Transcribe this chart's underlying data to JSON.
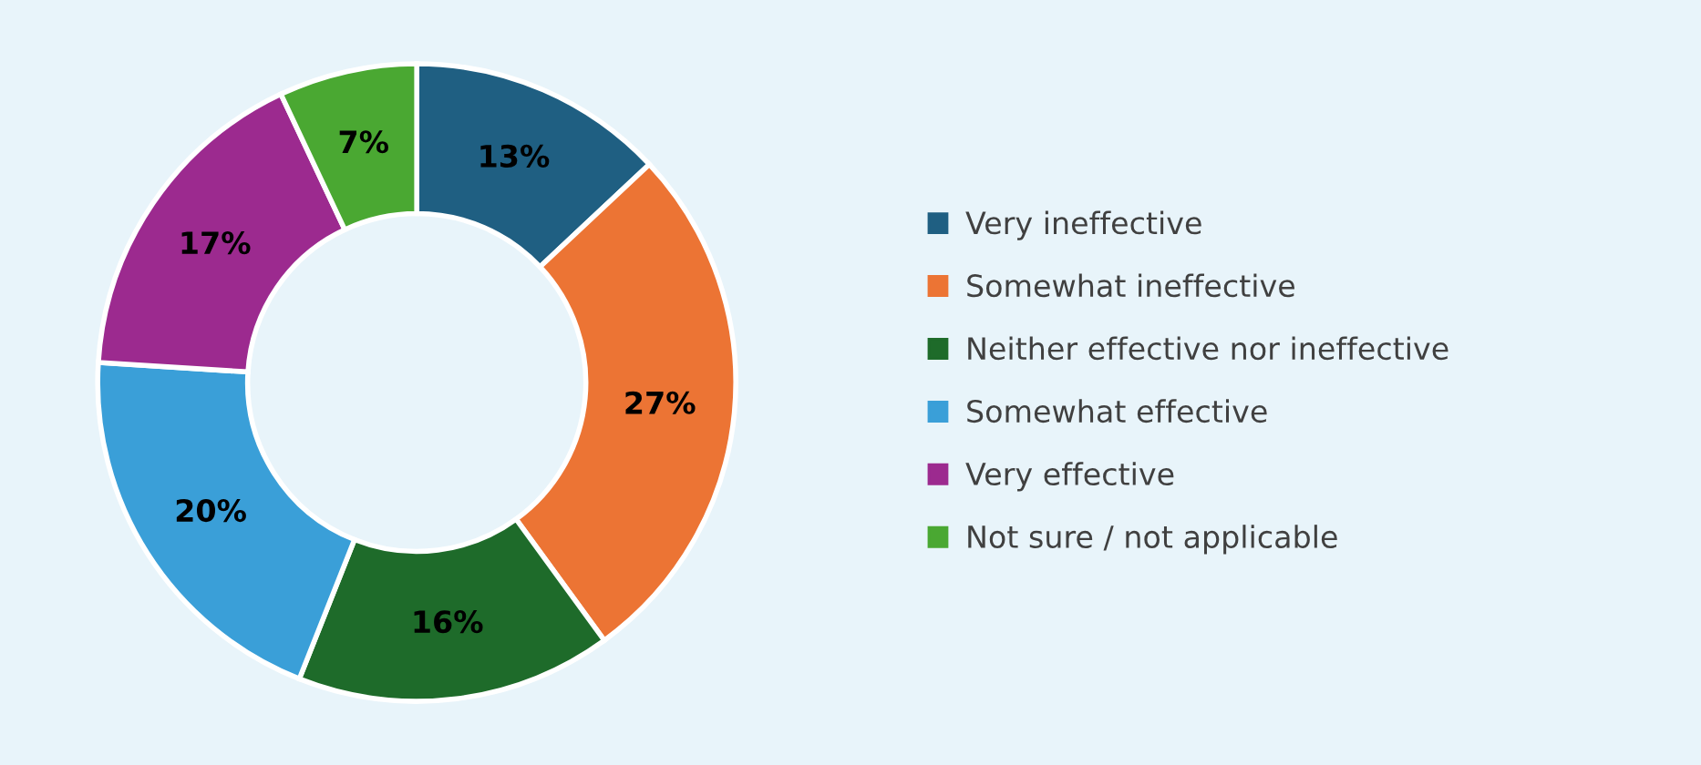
{
  "chart_data": {
    "type": "donut",
    "categories": [
      "Very ineffective",
      "Somewhat ineffective",
      "Neither effective nor ineffective",
      "Somewhat effective",
      "Very effective",
      "Not sure / not applicable"
    ],
    "values": [
      13,
      27,
      16,
      20,
      17,
      7
    ],
    "colors": [
      "#1f5f82",
      "#ec7434",
      "#1e6b2a",
      "#3a9fd8",
      "#9c2a8f",
      "#4aa832"
    ],
    "value_labels": [
      "13%",
      "27%",
      "16%",
      "20%",
      "17%",
      "7%"
    ],
    "legend": "right"
  }
}
